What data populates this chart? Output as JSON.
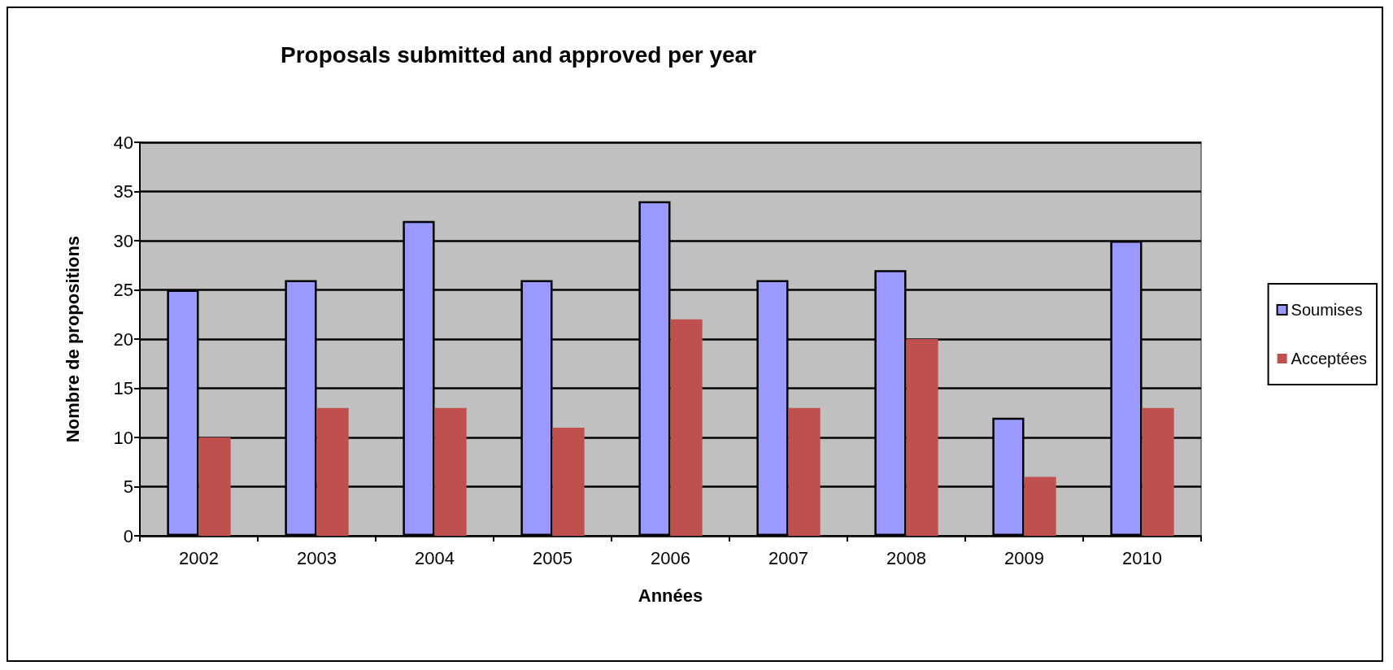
{
  "chart_data": {
    "type": "bar",
    "title": "Proposals submitted and approved per year",
    "xlabel": "Années",
    "ylabel": "Nombre de propositions",
    "categories": [
      "2002",
      "2003",
      "2004",
      "2005",
      "2006",
      "2007",
      "2008",
      "2009",
      "2010"
    ],
    "series": [
      {
        "name": "Soumises",
        "color": "#9999ff",
        "values": [
          25,
          26,
          32,
          26,
          34,
          26,
          27,
          12,
          30
        ]
      },
      {
        "name": "Acceptées",
        "color": "#c0504d",
        "values": [
          10,
          13,
          13,
          11,
          22,
          13,
          20,
          6,
          13
        ]
      }
    ],
    "ylim": [
      0,
      40
    ],
    "yticks": [
      0,
      5,
      10,
      15,
      20,
      25,
      30,
      35,
      40
    ],
    "grid": "y",
    "legend": "right"
  }
}
